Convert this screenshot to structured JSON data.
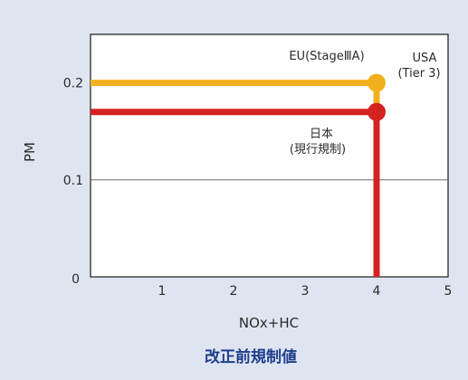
{
  "chart_data": {
    "type": "line",
    "xlabel": "NOx+HC",
    "ylabel": "PM",
    "xlim": [
      0,
      5
    ],
    "ylim": [
      0,
      0.25
    ],
    "x_ticks": [
      "1",
      "2",
      "3",
      "4",
      "5"
    ],
    "y_ticks": [
      "0",
      "0.1",
      "0.2"
    ],
    "y_tick_values": [
      0,
      0.1,
      0.2
    ],
    "grid": "y-only at 0.1",
    "series": [
      {
        "name": "EU(StageⅢA) / USA (Tier 3)",
        "labels": [
          "EU(StageⅢA)",
          "USA",
          "(Tier 3)"
        ],
        "color": "#f2b01e",
        "nox_hc": 4,
        "pm": 0.2
      },
      {
        "name": "日本 (現行規制)",
        "labels": [
          "日本",
          "(現行規制)"
        ],
        "color": "#d4221e",
        "nox_hc": 4,
        "pm": 0.17
      }
    ]
  },
  "caption": "改正前規制値",
  "colors": {
    "background": "#dfe5f0",
    "caption": "#1d3f8c"
  }
}
